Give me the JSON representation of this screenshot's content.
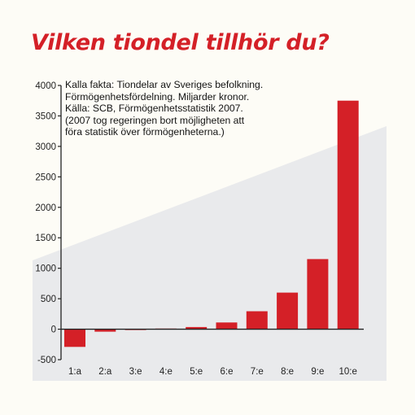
{
  "title": "Vilken tiondel tillhör du?",
  "note_lines": [
    "Kalla fakta: Tiondelar av Sveriges befolkning.",
    "Förmögenhetsfördelning. Miljarder kronor.",
    "Källa: SCB, Förmögenhetsstatistik 2007.",
    "(2007 tog regeringen bort möjligheten att",
    "föra statistik över förmögenheterna.)"
  ],
  "colors": {
    "title": "#d42027",
    "bar": "#d42027",
    "background_wedge": "#e9eaec",
    "axis": "#222222"
  },
  "chart_data": {
    "type": "bar",
    "title": "Vilken tiondel tillhör du?",
    "xlabel": "",
    "ylabel": "",
    "categories": [
      "1:a",
      "2:a",
      "3:e",
      "4:e",
      "5:e",
      "6:e",
      "7:e",
      "8:e",
      "9:e",
      "10:e"
    ],
    "values": [
      -290,
      -40,
      0,
      10,
      35,
      110,
      295,
      600,
      1150,
      3750
    ],
    "ylim": [
      -500,
      4000
    ],
    "yticks": [
      -500,
      0,
      500,
      1000,
      1500,
      2000,
      2500,
      3000,
      3500,
      4000
    ],
    "ytick_labels": [
      "-500",
      "0",
      "500",
      "1000",
      "1500",
      "2000",
      "2500",
      "3000",
      "3500",
      "4000"
    ],
    "grid": false,
    "legend": "none"
  }
}
